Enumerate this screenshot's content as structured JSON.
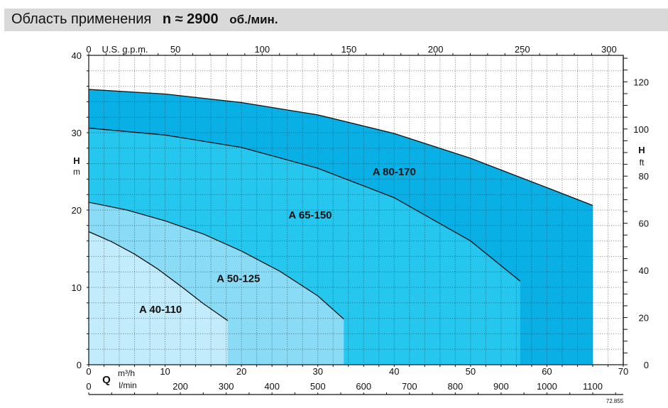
{
  "header": {
    "title": "Область применения",
    "speed_label": "n ≈ 2900",
    "speed_unit": "об./мин."
  },
  "colors": {
    "a40": "#c2ecfb",
    "a50": "#8adcf6",
    "a65": "#26c7ef",
    "a80": "#08b0e6",
    "grid": "#111111"
  },
  "chart_data": {
    "type": "area",
    "title": "",
    "axes": {
      "bottom_primary": {
        "label": "Q",
        "unit": "m³/h",
        "range": [
          0,
          70
        ],
        "ticks": [
          "0",
          "10",
          "20",
          "30",
          "40",
          "50",
          "60",
          "70"
        ]
      },
      "bottom_secondary": {
        "unit": "l/min",
        "ticks": [
          "0",
          "200",
          "300",
          "400",
          "500",
          "600",
          "700",
          "800",
          "900",
          "1000",
          "1100"
        ]
      },
      "top": {
        "label": "U.S. g.p.m.",
        "ticks": [
          "0",
          "50",
          "100",
          "150",
          "200",
          "250",
          "300"
        ]
      },
      "left": {
        "label": "H",
        "unit": "m",
        "range": [
          0,
          40
        ],
        "ticks": [
          "0",
          "10",
          "20",
          "30",
          "40"
        ]
      },
      "right": {
        "label": "H",
        "unit": "ft",
        "ticks": [
          "0",
          "20",
          "40",
          "60",
          "80",
          "100",
          "120"
        ]
      }
    },
    "grid": true,
    "footnote": "72.855",
    "series": [
      {
        "name": "A 40-110",
        "color": "a40",
        "q_max": 18.2,
        "curve": [
          [
            0,
            17.2
          ],
          [
            3,
            15.9
          ],
          [
            6,
            14.3
          ],
          [
            9,
            12.4
          ],
          [
            12,
            10.2
          ],
          [
            15,
            7.9
          ],
          [
            18.2,
            5.7
          ]
        ]
      },
      {
        "name": "A 50-125",
        "color": "a50",
        "q_max": 33.4,
        "curve": [
          [
            0,
            21.0
          ],
          [
            5,
            20.0
          ],
          [
            10,
            18.6
          ],
          [
            15,
            16.9
          ],
          [
            20,
            14.7
          ],
          [
            25,
            12.1
          ],
          [
            30,
            8.9
          ],
          [
            33.4,
            5.9
          ]
        ]
      },
      {
        "name": "A 65-150",
        "color": "a65",
        "q_max": 56.5,
        "curve": [
          [
            0,
            30.6
          ],
          [
            10,
            29.7
          ],
          [
            20,
            28.1
          ],
          [
            30,
            25.4
          ],
          [
            40,
            21.6
          ],
          [
            50,
            16.0
          ],
          [
            56.5,
            10.8
          ]
        ]
      },
      {
        "name": "A 80-170",
        "color": "a80",
        "q_max": 66.0,
        "curve": [
          [
            0,
            35.6
          ],
          [
            10,
            35.0
          ],
          [
            20,
            33.9
          ],
          [
            30,
            32.3
          ],
          [
            40,
            29.9
          ],
          [
            50,
            26.7
          ],
          [
            60,
            22.9
          ],
          [
            66,
            20.6
          ]
        ]
      }
    ]
  }
}
